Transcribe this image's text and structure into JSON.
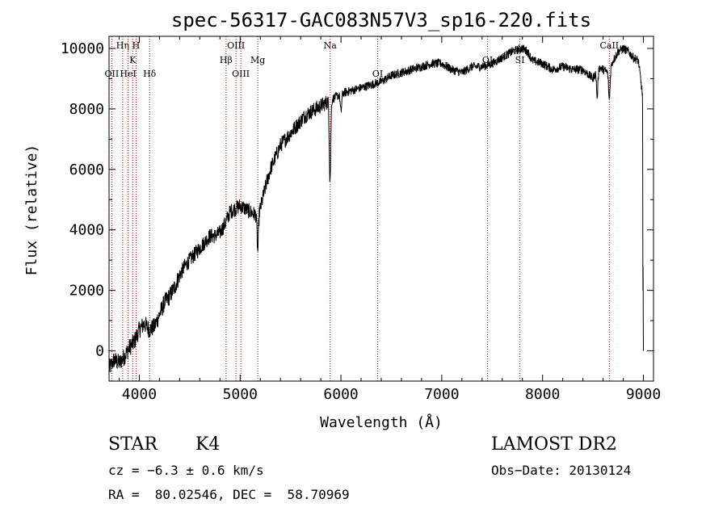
{
  "chart_data": {
    "type": "line",
    "title": "spec-56317-GAC083N57V3_sp16-220.fits",
    "xlabel": "Wavelength (Å)",
    "ylabel": "Flux (relative)",
    "xlim": [
      3700,
      9100
    ],
    "ylim": [
      -1000,
      10400
    ],
    "x_ticks": [
      4000,
      5000,
      6000,
      7000,
      8000,
      9000
    ],
    "y_ticks": [
      0,
      2000,
      4000,
      6000,
      8000,
      10000
    ],
    "grid": false,
    "line_color": "#000000",
    "marker_color": "#8b0000",
    "spectrum": [
      [
        3700,
        -600
      ],
      [
        3750,
        -300
      ],
      [
        3800,
        -400
      ],
      [
        3850,
        -200
      ],
      [
        3900,
        100
      ],
      [
        3950,
        300
      ],
      [
        4000,
        700
      ],
      [
        4050,
        900
      ],
      [
        4100,
        700
      ],
      [
        4150,
        800
      ],
      [
        4200,
        1200
      ],
      [
        4250,
        1600
      ],
      [
        4300,
        1800
      ],
      [
        4350,
        2100
      ],
      [
        4400,
        2500
      ],
      [
        4450,
        2800
      ],
      [
        4500,
        3000
      ],
      [
        4550,
        3200
      ],
      [
        4600,
        3400
      ],
      [
        4650,
        3600
      ],
      [
        4700,
        3800
      ],
      [
        4750,
        3800
      ],
      [
        4800,
        3900
      ],
      [
        4850,
        4200
      ],
      [
        4900,
        4600
      ],
      [
        4950,
        4700
      ],
      [
        5000,
        4800
      ],
      [
        5050,
        4700
      ],
      [
        5100,
        4600
      ],
      [
        5150,
        4500
      ],
      [
        5200,
        4700
      ],
      [
        5250,
        5400
      ],
      [
        5300,
        6000
      ],
      [
        5350,
        6400
      ],
      [
        5400,
        6800
      ],
      [
        5450,
        7000
      ],
      [
        5500,
        7200
      ],
      [
        5550,
        7400
      ],
      [
        5600,
        7600
      ],
      [
        5650,
        7800
      ],
      [
        5700,
        7900
      ],
      [
        5750,
        8000
      ],
      [
        5800,
        8100
      ],
      [
        5850,
        8200
      ],
      [
        5900,
        8300
      ],
      [
        5950,
        8400
      ],
      [
        6000,
        8500
      ],
      [
        6100,
        8600
      ],
      [
        6200,
        8700
      ],
      [
        6300,
        8800
      ],
      [
        6400,
        8900
      ],
      [
        6500,
        9100
      ],
      [
        6600,
        9200
      ],
      [
        6700,
        9300
      ],
      [
        6800,
        9400
      ],
      [
        6900,
        9500
      ],
      [
        7000,
        9500
      ],
      [
        7100,
        9300
      ],
      [
        7200,
        9200
      ],
      [
        7300,
        9400
      ],
      [
        7400,
        9400
      ],
      [
        7500,
        9500
      ],
      [
        7600,
        9700
      ],
      [
        7700,
        9900
      ],
      [
        7800,
        10000
      ],
      [
        7850,
        9900
      ],
      [
        7900,
        9600
      ],
      [
        8000,
        9500
      ],
      [
        8100,
        9300
      ],
      [
        8200,
        9400
      ],
      [
        8300,
        9300
      ],
      [
        8400,
        9300
      ],
      [
        8500,
        9000
      ],
      [
        8550,
        9400
      ],
      [
        8600,
        9300
      ],
      [
        8650,
        9200
      ],
      [
        8700,
        9600
      ],
      [
        8750,
        9900
      ],
      [
        8800,
        10000
      ],
      [
        8850,
        9900
      ],
      [
        8900,
        9700
      ],
      [
        8950,
        9600
      ],
      [
        8990,
        8500
      ],
      [
        8995,
        2000
      ],
      [
        9000,
        0
      ]
    ],
    "dips": [
      {
        "x": 5175,
        "y": 3300
      },
      {
        "x": 5892,
        "y": 5700
      },
      {
        "x": 6000,
        "y": 7900
      },
      {
        "x": 8542,
        "y": 8400
      },
      {
        "x": 8662,
        "y": 8300
      }
    ],
    "lines": [
      {
        "name": "OII",
        "x": 3727,
        "row": 3
      },
      {
        "name": "Hη",
        "x": 3835,
        "row": 1
      },
      {
        "name": "HeI",
        "x": 3889,
        "row": 3
      },
      {
        "name": "K",
        "x": 3934,
        "row": 2
      },
      {
        "name": "H",
        "x": 3968,
        "row": 1
      },
      {
        "name": "Hδ",
        "x": 4102,
        "row": 3
      },
      {
        "name": "Hβ",
        "x": 4861,
        "row": 2
      },
      {
        "name": "OIII",
        "x": 4959,
        "row": 1
      },
      {
        "name": "OIII",
        "x": 5007,
        "row": 3
      },
      {
        "name": "Mg",
        "x": 5175,
        "row": 2
      },
      {
        "name": "Na",
        "x": 5893,
        "row": 1
      },
      {
        "name": "OI",
        "x": 6364,
        "row": 3
      },
      {
        "name": "OI",
        "x": 7454,
        "row": 2
      },
      {
        "name": "SI",
        "x": 7775,
        "row": 2
      },
      {
        "name": "CaII",
        "x": 8662,
        "row": 1
      }
    ]
  },
  "info": {
    "class": "STAR",
    "subclass": "K4",
    "survey": "LAMOST DR2",
    "cz": "cz = −6.3 ± 0.6 km/s",
    "obs_date": "Obs−Date: 20130124",
    "coords": "RA =  80.02546, DEC =  58.70969"
  }
}
